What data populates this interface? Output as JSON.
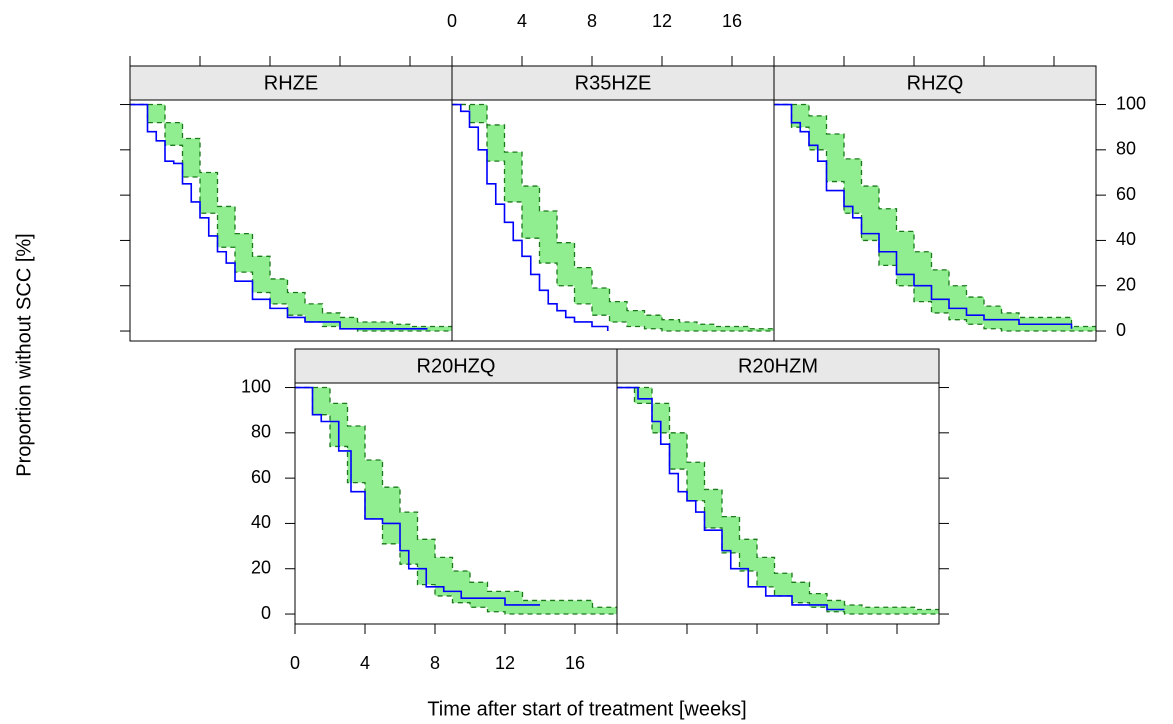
{
  "chart_data": {
    "type": "survival-step",
    "xlabel": "Time after start of treatment [weeks]",
    "ylabel": "Proportion without SCC [%]",
    "xlim": [
      0,
      18.4
    ],
    "xticks": [
      0,
      4,
      8,
      12,
      16
    ],
    "ylim": [
      -4.4,
      102
    ],
    "yticks": [
      0,
      20,
      40,
      60,
      80,
      100
    ],
    "km_color": "#0000ff",
    "band_color": "#90ee90",
    "band_edge_color": "#1a7a1a",
    "panels": [
      {
        "title": "RHZE",
        "km": {
          "x": [
            0,
            1,
            1.5,
            2,
            2.5,
            3,
            3.5,
            4,
            4.5,
            5,
            5.5,
            6,
            7,
            8,
            9,
            10,
            12,
            17
          ],
          "values": [
            100,
            88,
            84,
            75,
            74,
            65,
            57,
            50,
            42,
            35,
            30,
            22,
            14,
            10,
            6,
            4,
            1,
            1
          ]
        },
        "band": {
          "x": [
            0,
            1,
            2,
            3,
            4,
            5,
            6,
            7,
            8,
            9,
            10,
            11,
            12,
            13,
            14,
            15,
            16,
            17,
            18.4
          ],
          "upper": [
            100,
            100,
            92,
            85,
            70,
            55,
            43,
            33,
            23,
            17,
            12,
            8,
            6,
            4,
            4,
            3,
            2,
            2,
            2
          ],
          "lower": [
            100,
            92,
            82,
            68,
            52,
            37,
            26,
            17,
            12,
            7,
            4,
            2,
            1,
            0,
            0,
            0,
            0,
            0,
            0
          ]
        }
      },
      {
        "title": "R35HZE",
        "km": {
          "x": [
            0,
            0.5,
            1,
            1.5,
            2,
            2.5,
            3,
            3.5,
            4,
            4.5,
            5,
            5.5,
            6,
            6.5,
            7,
            8,
            8.9
          ],
          "values": [
            100,
            97,
            90,
            80,
            65,
            56,
            48,
            40,
            33,
            25,
            18,
            12,
            9,
            6,
            4,
            2,
            0
          ]
        },
        "band": {
          "x": [
            0,
            1,
            2,
            3,
            4,
            5,
            6,
            7,
            8,
            9,
            10,
            11,
            12,
            13,
            14,
            15,
            16,
            17,
            18.4
          ],
          "upper": [
            100,
            100,
            91,
            79,
            64,
            53,
            39,
            28,
            19,
            13,
            9,
            7,
            5,
            4,
            3,
            2,
            2,
            1,
            1
          ],
          "lower": [
            100,
            92,
            75,
            57,
            41,
            30,
            20,
            12,
            7,
            4,
            2,
            1,
            0,
            0,
            0,
            0,
            0,
            0,
            0
          ]
        }
      },
      {
        "title": "RHZQ",
        "km": {
          "x": [
            0,
            1,
            1.5,
            2,
            2.5,
            3,
            4,
            4.5,
            5,
            6,
            7,
            8,
            9,
            10,
            11,
            12,
            14,
            17
          ],
          "values": [
            100,
            92,
            88,
            82,
            75,
            62,
            55,
            50,
            43,
            35,
            25,
            20,
            14,
            10,
            7,
            5,
            3,
            1
          ]
        },
        "band": {
          "x": [
            0,
            1,
            2,
            3,
            4,
            5,
            6,
            7,
            8,
            9,
            10,
            11,
            12,
            13,
            14,
            15,
            16,
            17,
            18.4
          ],
          "upper": [
            100,
            100,
            95,
            87,
            76,
            64,
            54,
            44,
            35,
            27,
            20,
            15,
            11,
            8,
            6,
            6,
            6,
            2,
            2
          ],
          "lower": [
            100,
            90,
            80,
            66,
            52,
            40,
            29,
            20,
            13,
            8,
            5,
            3,
            1,
            0,
            0,
            0,
            0,
            0,
            0
          ]
        }
      },
      {
        "title": "R20HZQ",
        "km": {
          "x": [
            0,
            1,
            1.5,
            2.5,
            3.2,
            4,
            5,
            6,
            6.5,
            7.5,
            8.5,
            9.5,
            12,
            14
          ],
          "values": [
            100,
            88,
            85,
            72,
            54,
            42,
            40,
            28,
            20,
            12,
            10,
            7,
            4,
            4
          ]
        },
        "band": {
          "x": [
            0,
            1,
            2,
            3,
            4,
            5,
            6,
            7,
            8,
            9,
            10,
            11,
            12,
            13,
            14,
            15,
            16,
            17,
            18.4
          ],
          "upper": [
            100,
            100,
            93,
            83,
            68,
            56,
            45,
            33,
            25,
            19,
            14,
            10,
            10,
            6,
            6,
            6,
            6,
            3,
            3
          ],
          "lower": [
            100,
            88,
            74,
            58,
            42,
            31,
            22,
            13,
            8,
            5,
            3,
            1,
            0,
            0,
            0,
            0,
            0,
            0,
            0
          ]
        }
      },
      {
        "title": "R20HZM",
        "km": {
          "x": [
            0,
            1.2,
            2,
            2.5,
            3,
            3.5,
            4,
            4.5,
            5,
            6,
            6.5,
            7.5,
            8.5,
            10,
            12,
            13
          ],
          "values": [
            100,
            95,
            85,
            75,
            62,
            54,
            50,
            45,
            37,
            28,
            20,
            12,
            8,
            4,
            2,
            2
          ]
        },
        "band": {
          "x": [
            0,
            1,
            2,
            3,
            4,
            5,
            6,
            7,
            8,
            9,
            10,
            11,
            12,
            13,
            14,
            15,
            16,
            17,
            18.4
          ],
          "upper": [
            100,
            100,
            93,
            80,
            67,
            55,
            43,
            33,
            25,
            18,
            14,
            9,
            6,
            4,
            3,
            3,
            3,
            2,
            2
          ],
          "lower": [
            100,
            93,
            80,
            64,
            50,
            38,
            27,
            19,
            12,
            8,
            5,
            3,
            1,
            0,
            0,
            0,
            0,
            0,
            0
          ]
        }
      }
    ]
  }
}
